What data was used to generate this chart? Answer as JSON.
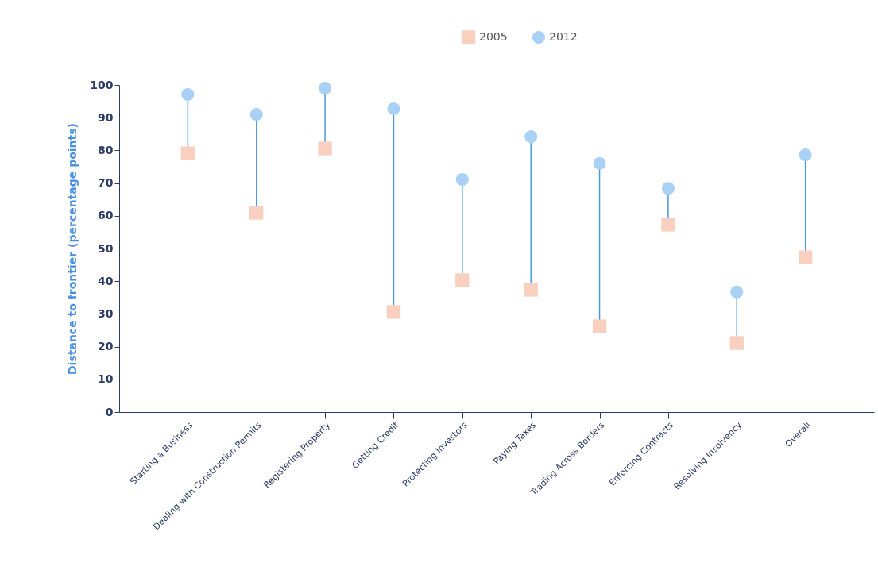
{
  "chart_data": {
    "type": "scatter",
    "ylabel": "Distance to frontier (percentage points)",
    "categories": [
      "Starting a Business",
      "Dealing with Construction Permits",
      "Registering Property",
      "Getting Credit",
      "Protecting Investors",
      "Paying Taxes",
      "Trading Across Borders",
      "Enforcing Contracts",
      "Resolving Insolvency",
      "Overall"
    ],
    "series": [
      {
        "name": "2005",
        "color": "#f9cfc0",
        "marker": "square",
        "values": [
          79.1,
          60.9,
          80.6,
          30.6,
          40.3,
          37.4,
          26.2,
          57.3,
          21.1,
          47.3
        ]
      },
      {
        "name": "2012",
        "color": "#a9d0f5",
        "marker": "circle",
        "values": [
          97.1,
          91.0,
          99.0,
          92.7,
          71.1,
          84.2,
          76.0,
          68.4,
          36.7,
          78.6
        ]
      }
    ],
    "ylim": [
      0,
      100
    ],
    "yticks": [
      0,
      10,
      20,
      30,
      40,
      50,
      60,
      70,
      80,
      90,
      100
    ],
    "legend": "top",
    "grid": false
  }
}
